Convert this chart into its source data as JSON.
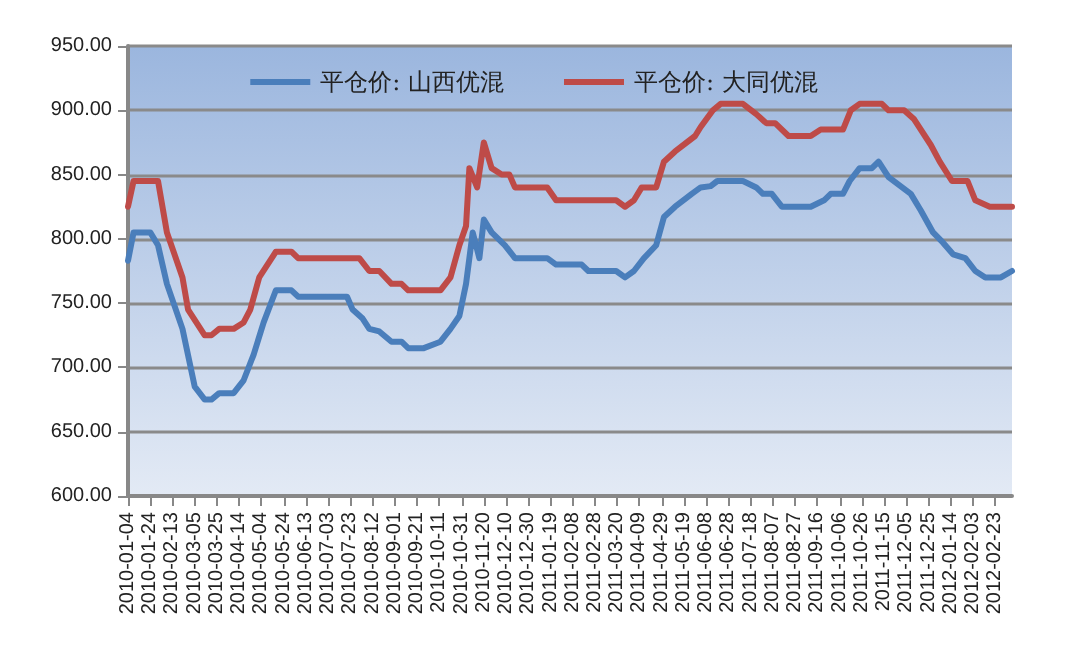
{
  "chart_data": {
    "type": "line",
    "legend": "top",
    "grid": "y",
    "marker": "none",
    "line_style": "solid",
    "xlim": [
      "2010-01-04",
      "2012-03-09"
    ],
    "xticks": [
      "2010-01-04",
      "2010-01-24",
      "2010-02-13",
      "2010-03-05",
      "2010-03-25",
      "2010-04-14",
      "2010-05-04",
      "2010-05-24",
      "2010-06-13",
      "2010-07-03",
      "2010-07-23",
      "2010-08-12",
      "2010-09-01",
      "2010-09-21",
      "2010-10-11",
      "2010-10-31",
      "2010-11-20",
      "2010-12-10",
      "2010-12-30",
      "2011-01-19",
      "2011-02-08",
      "2011-02-28",
      "2011-03-20",
      "2011-04-09",
      "2011-04-29",
      "2011-05-19",
      "2011-06-08",
      "2011-06-28",
      "2011-07-18",
      "2011-08-07",
      "2011-08-27",
      "2011-09-16",
      "2011-10-06",
      "2011-10-26",
      "2011-11-15",
      "2011-12-05",
      "2011-12-25",
      "2012-01-14",
      "2012-02-03",
      "2012-02-23"
    ],
    "ylim": [
      600,
      950
    ],
    "yticks": [
      {
        "value": 600,
        "label": "600.00"
      },
      {
        "value": 650,
        "label": "650.00"
      },
      {
        "value": 700,
        "label": "700.00"
      },
      {
        "value": 750,
        "label": "750.00"
      },
      {
        "value": 800,
        "label": "800.00"
      },
      {
        "value": 850,
        "label": "850.00"
      },
      {
        "value": 900,
        "label": "900.00"
      },
      {
        "value": 950,
        "label": "950.00"
      }
    ],
    "series": [
      {
        "name": "平仓价: 山西优混",
        "color": "#4a7ebb",
        "x": [
          "2010-01-04",
          "2010-01-09",
          "2010-01-24",
          "2010-01-31",
          "2010-02-08",
          "2010-02-22",
          "2010-03-05",
          "2010-03-14",
          "2010-03-20",
          "2010-03-27",
          "2010-04-09",
          "2010-04-18",
          "2010-04-27",
          "2010-05-06",
          "2010-05-17",
          "2010-05-31",
          "2010-06-06",
          "2010-07-20",
          "2010-07-25",
          "2010-08-03",
          "2010-08-09",
          "2010-08-18",
          "2010-08-29",
          "2010-09-07",
          "2010-09-13",
          "2010-09-27",
          "2010-10-12",
          "2010-10-21",
          "2010-10-29",
          "2010-11-04",
          "2010-11-10",
          "2010-11-16",
          "2010-11-20",
          "2010-11-27",
          "2010-12-09",
          "2010-12-18",
          "2010-12-23",
          "2011-01-16",
          "2011-01-24",
          "2011-02-16",
          "2011-02-22",
          "2011-03-19",
          "2011-03-27",
          "2011-04-04",
          "2011-04-13",
          "2011-04-24",
          "2011-05-01",
          "2011-05-11",
          "2011-05-26",
          "2011-06-03",
          "2011-06-12",
          "2011-06-18",
          "2011-07-11",
          "2011-07-23",
          "2011-07-29",
          "2011-08-06",
          "2011-08-15",
          "2011-09-10",
          "2011-09-22",
          "2011-09-28",
          "2011-10-09",
          "2011-10-15",
          "2011-10-24",
          "2011-11-04",
          "2011-11-10",
          "2011-11-19",
          "2011-12-09",
          "2011-12-18",
          "2011-12-29",
          "2012-01-07",
          "2012-01-16",
          "2012-01-27",
          "2012-02-05",
          "2012-02-14",
          "2012-02-28",
          "2012-03-09"
        ],
        "values": [
          783,
          805,
          805,
          795,
          765,
          730,
          685,
          675,
          675,
          680,
          680,
          690,
          710,
          735,
          760,
          760,
          755,
          755,
          745,
          738,
          730,
          728,
          720,
          720,
          715,
          715,
          720,
          730,
          740,
          765,
          805,
          785,
          815,
          805,
          795,
          785,
          785,
          785,
          780,
          780,
          775,
          775,
          770,
          775,
          785,
          795,
          817,
          825,
          835,
          840,
          841,
          845,
          845,
          840,
          835,
          835,
          825,
          825,
          830,
          835,
          835,
          845,
          855,
          855,
          860,
          848,
          835,
          822,
          805,
          797,
          788,
          785,
          775,
          770,
          770,
          775
        ]
      },
      {
        "name": "平仓价: 大同优混",
        "color": "#be4b48",
        "x": [
          "2010-01-04",
          "2010-01-09",
          "2010-01-31",
          "2010-02-08",
          "2010-02-22",
          "2010-02-27",
          "2010-03-14",
          "2010-03-20",
          "2010-03-27",
          "2010-04-09",
          "2010-04-18",
          "2010-04-24",
          "2010-05-02",
          "2010-05-17",
          "2010-05-31",
          "2010-06-06",
          "2010-07-31",
          "2010-08-09",
          "2010-08-18",
          "2010-08-29",
          "2010-09-07",
          "2010-09-13",
          "2010-10-12",
          "2010-10-21",
          "2010-10-29",
          "2010-11-04",
          "2010-11-07",
          "2010-11-14",
          "2010-11-20",
          "2010-11-27",
          "2010-12-06",
          "2010-12-13",
          "2010-12-18",
          "2010-12-23",
          "2011-01-16",
          "2011-01-24",
          "2011-03-19",
          "2011-03-27",
          "2011-04-04",
          "2011-04-11",
          "2011-04-24",
          "2011-05-01",
          "2011-05-11",
          "2011-05-29",
          "2011-06-03",
          "2011-06-14",
          "2011-06-21",
          "2011-07-11",
          "2011-07-23",
          "2011-08-01",
          "2011-08-09",
          "2011-08-21",
          "2011-09-10",
          "2011-09-19",
          "2011-10-09",
          "2011-10-16",
          "2011-10-24",
          "2011-11-13",
          "2011-11-19",
          "2011-12-03",
          "2011-12-12",
          "2011-12-27",
          "2012-01-04",
          "2012-01-15",
          "2012-01-29",
          "2012-02-05",
          "2012-02-18",
          "2012-03-09"
        ],
        "values": [
          825,
          845,
          845,
          805,
          770,
          745,
          725,
          725,
          730,
          730,
          735,
          745,
          770,
          790,
          790,
          785,
          785,
          775,
          775,
          765,
          765,
          760,
          760,
          770,
          795,
          810,
          855,
          840,
          875,
          855,
          850,
          850,
          840,
          840,
          840,
          830,
          830,
          825,
          830,
          840,
          840,
          860,
          868,
          880,
          887,
          900,
          905,
          905,
          897,
          890,
          890,
          880,
          880,
          885,
          885,
          900,
          905,
          905,
          900,
          900,
          893,
          873,
          860,
          845,
          845,
          830,
          825,
          825
        ]
      }
    ]
  }
}
